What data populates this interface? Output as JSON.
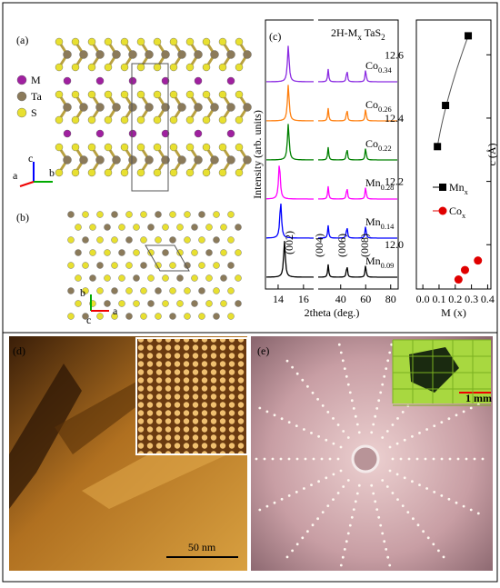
{
  "panel_labels": [
    "(a)",
    "(b)",
    "(c)",
    "(d)",
    "(e)"
  ],
  "structure_legend": [
    "M",
    "Ta",
    "S"
  ],
  "axes_a": [
    "c",
    "a",
    "b"
  ],
  "axes_b": [
    "b",
    "c",
    "a"
  ],
  "chart_data": [
    {
      "type": "line",
      "title_parts": [
        "2H-M",
        "x",
        " TaS",
        "2"
      ],
      "x_label": "2theta (deg.)",
      "y_label": "Intensity (arb. units)",
      "xlim_left": [
        13,
        16.8
      ],
      "xticks_left": [
        14,
        16
      ],
      "xlim": [
        22,
        86
      ],
      "xticks": [
        40,
        60,
        80
      ],
      "peaks_high": [
        30,
        45,
        60
      ],
      "reflections": [
        "(002)",
        "(004)",
        "(006)",
        "(008)"
      ],
      "series": [
        {
          "name_parts": [
            "Mn",
            "0.09"
          ],
          "color": "#000000",
          "peak": 14.5
        },
        {
          "name_parts": [
            "Mn",
            "0.14"
          ],
          "color": "#0000ff",
          "peak": 14.2
        },
        {
          "name_parts": [
            "Mn",
            "0.28"
          ],
          "color": "#ff00ff",
          "peak": 14.1
        },
        {
          "name_parts": [
            "Co",
            "0.22"
          ],
          "color": "#008000",
          "peak": 14.8
        },
        {
          "name_parts": [
            "Co",
            "0.26"
          ],
          "color": "#ff7f0e",
          "peak": 14.8
        },
        {
          "name_parts": [
            "Co",
            "0.34"
          ],
          "color": "#8b2be2",
          "peak": 14.8
        }
      ]
    },
    {
      "type": "scatter",
      "x_label": "M (x)",
      "y_label": "c (Å)",
      "xlim": [
        -0.04,
        0.42
      ],
      "xticks": [
        {
          "value": 0,
          "label": "0.0"
        },
        0.1,
        0.2,
        0.3,
        0.4
      ],
      "ylim": [
        11.86,
        12.71
      ],
      "yticks": [
        {
          "value": 12,
          "label": "12.0"
        },
        12.2,
        12.4,
        12.6
      ],
      "series": [
        {
          "name_parts": [
            "Mn",
            "x"
          ],
          "color": "#000000",
          "marker": "square",
          "x": [
            0.09,
            0.14,
            0.28
          ],
          "values": [
            12.31,
            12.44,
            12.66
          ]
        },
        {
          "name_parts": [
            "Co",
            "x"
          ],
          "color": "#e00000",
          "marker": "circle",
          "x": [
            0.22,
            0.26,
            0.34
          ],
          "values": [
            11.89,
            11.92,
            11.95
          ]
        }
      ]
    }
  ],
  "stm": {
    "scale_bar": "50 nm"
  },
  "photo": {
    "scale_bar": "1 mm"
  }
}
